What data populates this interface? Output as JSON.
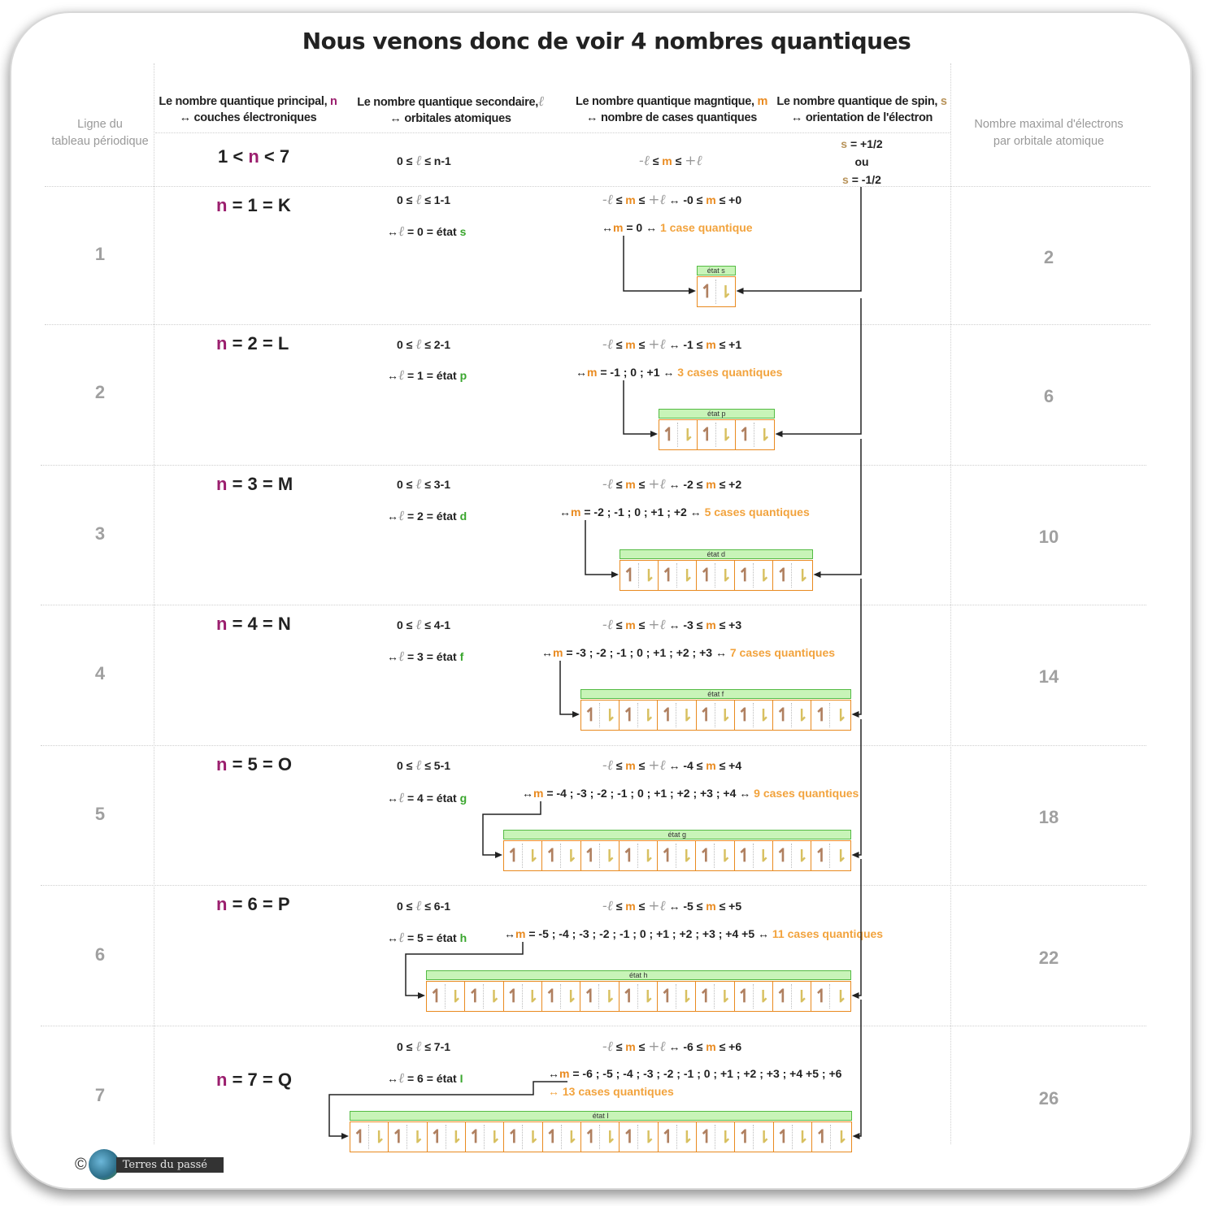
{
  "title": "Nous venons donc de voir 4 nombres quantiques",
  "headers": {
    "row_label_line1": "Ligne du",
    "row_label_line2": "tableau périodique",
    "n_line1": "Le nombre quantique principal,",
    "n_sym": "n",
    "n_line2": "↔ couches électroniques",
    "l_line1": "Le nombre quantique secondaire,",
    "l_sym": "ℓ",
    "l_line2": "↔ orbitales atomiques",
    "m_line1": "Le nombre quantique magntique,",
    "m_sym": "m",
    "m_line2": "↔ nombre de cases quantiques",
    "s_line1": "Le nombre quantique de spin,",
    "s_sym": "s",
    "s_line2": "↔ orientation de l'électron",
    "max_line1": "Nombre maximal d'électrons",
    "max_line2": "par orbitale atomique"
  },
  "general": {
    "n_range_a": "1 <",
    "n_range_n": "n",
    "n_range_b": "< 7",
    "l_range_a": "0 ≤",
    "l_range_l": "ℓ",
    "l_range_b": "≤ n-1",
    "m_range_l1": "-ℓ",
    "m_range_a": "≤",
    "m_range_m": "m",
    "m_range_b": "≤",
    "m_range_l2": "+ℓ",
    "s_plus_s": "s",
    "s_plus": "= +1/2",
    "s_ou": "ou",
    "s_minus_s": "s",
    "s_minus": "= -1/2"
  },
  "rows": [
    {
      "row": "1",
      "n_val": "= 1 = K",
      "l_ineq": "≤ 1-1",
      "l_state_pre": "= 0 = état",
      "l_state_letter": "s",
      "m_range": "↔ -0 ≤",
      "m_range_end": "≤ +0",
      "m_list": "= 0 ↔",
      "cases": "1 case quantique",
      "state_label": "état s",
      "max": "2"
    },
    {
      "row": "2",
      "n_val": "= 2 = L",
      "l_ineq": "≤ 2-1",
      "l_state_pre": "= 1 = état",
      "l_state_letter": "p",
      "m_range": "↔ -1 ≤",
      "m_range_end": "≤ +1",
      "m_list": "= -1 ; 0 ; +1 ↔",
      "cases": "3 cases quantiques",
      "state_label": "état p",
      "max": "6"
    },
    {
      "row": "3",
      "n_val": "= 3 = M",
      "l_ineq": "≤ 3-1",
      "l_state_pre": "= 2 = état",
      "l_state_letter": "d",
      "m_range": "↔ -2 ≤",
      "m_range_end": "≤ +2",
      "m_list": "= -2 ; -1 ; 0 ; +1 ; +2 ↔",
      "cases": "5 cases quantiques",
      "state_label": "état d",
      "max": "10"
    },
    {
      "row": "4",
      "n_val": "= 4 = N",
      "l_ineq": "≤ 4-1",
      "l_state_pre": "= 3 = état",
      "l_state_letter": "f",
      "m_range": "↔ -3 ≤",
      "m_range_end": "≤ +3",
      "m_list": "= -3 ; -2 ; -1 ; 0 ; +1 ; +2 ; +3 ↔",
      "cases": "7 cases quantiques",
      "state_label": "état f",
      "max": "14"
    },
    {
      "row": "5",
      "n_val": "= 5 = O",
      "l_ineq": "≤ 5-1",
      "l_state_pre": "= 4 = état",
      "l_state_letter": "g",
      "m_range": "↔ -4 ≤",
      "m_range_end": "≤ +4",
      "m_list": "= -4 ; -3 ; -2 ; -1 ; 0 ; +1 ; +2 ; +3 ; +4 ↔",
      "cases": "9 cases quantiques",
      "state_label": "état g",
      "max": "18"
    },
    {
      "row": "6",
      "n_val": "= 6 = P",
      "l_ineq": "≤ 6-1",
      "l_state_pre": "= 5 = état",
      "l_state_letter": "h",
      "m_range": "↔ -5 ≤",
      "m_range_end": "≤ +5",
      "m_list": "= -5 ; -4 ; -3 ; -2 ; -1 ; 0 ; +1 ; +2 ; +3 ; +4 +5 ↔",
      "cases": "11 cases quantiques",
      "state_label": "état h",
      "max": "22"
    },
    {
      "row": "7",
      "n_val": "= 7 = Q",
      "l_ineq": "≤ 7-1",
      "l_state_pre": "= 6 = état",
      "l_state_letter": "I",
      "m_range": "↔ -6 ≤",
      "m_range_end": "≤ +6",
      "m_list": "= -6 ; -5 ; -4 ; -3 ; -2 ; -1 ; 0 ; +1 ; +2 ; +3 ; +4 +5 ; +6",
      "cases": "↔ 13 cases quantiques",
      "state_label": "état I",
      "max": "26"
    }
  ],
  "boxes": [
    1,
    3,
    5,
    7,
    9,
    11,
    13
  ],
  "common": {
    "n": "n",
    "ell": "ℓ",
    "arrow": "↔",
    "zero_le": "0 ≤",
    "m": "m",
    "le": "≤",
    "minus_ell": "-ℓ",
    "plus_ell": "+ℓ",
    "arrow_m": "↔"
  },
  "footer": {
    "copyright": "©",
    "brand": "Terres du passé"
  },
  "colors": {
    "n": "#9b1f6e",
    "m": "#e98a1f",
    "l_state": "#3aa62e",
    "s": "#b8935a",
    "cases": "#f2a33d",
    "state_bar": "#c8f4b8"
  }
}
